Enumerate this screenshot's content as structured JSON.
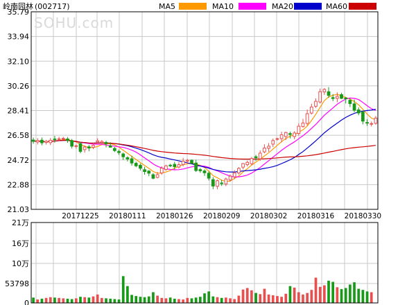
{
  "stock": {
    "title": "岭南园林",
    "code": "(002717)"
  },
  "watermark": "SOHU.com",
  "legend": [
    {
      "label": "MA5",
      "color": "#ff9900"
    },
    {
      "label": "MA10",
      "color": "#ff00ff"
    },
    {
      "label": "MA20",
      "color": "#0000cc"
    },
    {
      "label": "MA60",
      "color": "#cc0000"
    }
  ],
  "colors": {
    "up": "#e85050",
    "down": "#189a18",
    "grid": "#c8c8c8",
    "frame": "#000000"
  },
  "chart_data": {
    "type": "candlestick",
    "price_axis": {
      "ticks": [
        "35.79",
        "33.94",
        "32.10",
        "30.26",
        "28.41",
        "26.58",
        "24.72",
        "22.88",
        "21.03"
      ],
      "ylim": [
        21.03,
        35.79
      ]
    },
    "volume_axis": {
      "ticks": [
        "21万",
        "16万",
        "10万",
        "53798",
        "0"
      ],
      "ylim": [
        0,
        210000
      ]
    },
    "date_labels": [
      "20171225",
      "20180111",
      "20180126",
      "20180209",
      "20180302",
      "20180316",
      "20180330"
    ],
    "date_label_bars": [
      11,
      22,
      33,
      44,
      55,
      66,
      77
    ],
    "candles": [
      [
        26.21,
        26.11,
        26.39,
        25.93
      ],
      [
        26.06,
        26.17,
        26.35,
        25.88
      ],
      [
        26.2,
        26.0,
        26.4,
        25.81
      ],
      [
        26.03,
        26.11,
        26.22,
        25.87
      ],
      [
        26.01,
        26.19,
        26.36,
        25.83
      ],
      [
        26.29,
        26.25,
        26.52,
        26.01
      ],
      [
        26.26,
        26.3,
        26.45,
        26.16
      ],
      [
        26.3,
        26.33,
        26.45,
        26.21
      ],
      [
        26.29,
        26.17,
        26.43,
        26.0
      ],
      [
        26.17,
        25.75,
        26.29,
        25.58
      ],
      [
        25.77,
        25.78,
        25.87,
        25.57
      ],
      [
        25.94,
        25.36,
        26.06,
        25.22
      ],
      [
        25.49,
        25.69,
        25.8,
        25.27
      ],
      [
        25.7,
        25.61,
        25.83,
        25.37
      ],
      [
        25.67,
        25.81,
        26.02,
        25.53
      ],
      [
        26.07,
        26.15,
        26.34,
        25.97
      ],
      [
        26.02,
        26.1,
        26.21,
        25.82
      ],
      [
        26.03,
        25.93,
        26.15,
        25.66
      ],
      [
        25.77,
        25.67,
        26.04,
        25.64
      ],
      [
        25.58,
        25.42,
        25.7,
        25.31
      ],
      [
        25.36,
        25.27,
        25.49,
        25.1
      ],
      [
        25.17,
        24.96,
        25.27,
        24.72
      ],
      [
        24.89,
        24.79,
        25.0,
        24.61
      ],
      [
        24.81,
        24.49,
        25.04,
        24.3
      ],
      [
        24.47,
        24.28,
        24.59,
        24.18
      ],
      [
        24.32,
        24.1,
        24.46,
        23.93
      ],
      [
        23.99,
        23.85,
        24.21,
        23.62
      ],
      [
        23.89,
        23.73,
        23.96,
        23.51
      ],
      [
        23.62,
        23.35,
        23.74,
        23.28
      ],
      [
        23.42,
        23.62,
        23.83,
        23.34
      ],
      [
        23.75,
        24.11,
        24.24,
        23.61
      ],
      [
        24.01,
        24.28,
        24.36,
        23.91
      ],
      [
        24.33,
        24.29,
        24.43,
        24.19
      ],
      [
        24.39,
        24.22,
        24.58,
        24.01
      ],
      [
        24.19,
        24.37,
        24.56,
        24.08
      ],
      [
        24.37,
        24.63,
        24.88,
        24.24
      ],
      [
        24.63,
        24.69,
        24.8,
        24.42
      ],
      [
        24.7,
        24.47,
        24.75,
        24.41
      ],
      [
        24.49,
        23.93,
        24.73,
        23.82
      ],
      [
        24.0,
        23.91,
        24.12,
        23.76
      ],
      [
        23.9,
        23.76,
        24.02,
        23.53
      ],
      [
        23.73,
        23.36,
        23.87,
        23.19
      ],
      [
        23.25,
        22.77,
        23.44,
        22.54
      ],
      [
        22.75,
        23.17,
        23.25,
        22.53
      ],
      [
        23.0,
        22.96,
        23.24,
        22.78
      ],
      [
        22.93,
        23.3,
        23.4,
        22.76
      ],
      [
        23.22,
        23.51,
        23.64,
        23.1
      ],
      [
        23.46,
        23.75,
        23.96,
        23.28
      ],
      [
        23.75,
        24.09,
        24.19,
        23.63
      ],
      [
        24.18,
        24.45,
        24.49,
        24.01
      ],
      [
        24.37,
        24.54,
        24.67,
        24.24
      ],
      [
        24.44,
        24.83,
        24.94,
        24.31
      ],
      [
        24.96,
        24.88,
        25.1,
        24.66
      ],
      [
        24.81,
        25.23,
        25.43,
        24.65
      ],
      [
        25.32,
        25.61,
        25.89,
        25.22
      ],
      [
        25.59,
        25.75,
        25.98,
        25.32
      ],
      [
        25.9,
        26.17,
        26.32,
        25.68
      ],
      [
        26.27,
        26.31,
        26.38,
        26.17
      ],
      [
        26.31,
        26.6,
        26.83,
        26.03
      ],
      [
        26.47,
        26.77,
        26.83,
        26.21
      ],
      [
        26.69,
        26.63,
        26.83,
        26.33
      ],
      [
        26.47,
        26.73,
        26.87,
        26.27
      ],
      [
        26.7,
        27.24,
        27.45,
        26.54
      ],
      [
        27.21,
        27.48,
        27.79,
        27.14
      ],
      [
        27.45,
        28.18,
        28.49,
        27.29
      ],
      [
        28.22,
        28.68,
        28.92,
        28.12
      ],
      [
        28.73,
        29.1,
        29.32,
        28.61
      ],
      [
        29.05,
        29.82,
        30.06,
        28.93
      ],
      [
        29.8,
        29.99,
        30.09,
        29.58
      ],
      [
        29.82,
        29.54,
        30.16,
        29.36
      ],
      [
        29.38,
        29.31,
        29.64,
        29.11
      ],
      [
        29.32,
        29.47,
        29.77,
        29.03
      ],
      [
        29.6,
        29.32,
        29.74,
        29.27
      ],
      [
        29.35,
        29.29,
        29.43,
        28.94
      ],
      [
        29.18,
        28.93,
        29.33,
        28.67
      ],
      [
        28.91,
        28.44,
        29.23,
        28.29
      ],
      [
        28.46,
        28.23,
        28.65,
        28.06
      ],
      [
        28.3,
        27.62,
        28.4,
        27.38
      ],
      [
        27.52,
        27.5,
        27.77,
        27.27
      ],
      [
        27.4,
        27.44,
        27.59,
        27.22
      ],
      [
        27.46,
        27.85,
        28.0,
        27.35
      ]
    ],
    "volumes": [
      14000,
      9000,
      11000,
      13000,
      15000,
      14000,
      13000,
      12000,
      11000,
      10000,
      12000,
      16000,
      15000,
      14000,
      17000,
      22000,
      13000,
      12000,
      11000,
      10000,
      9000,
      70000,
      44000,
      21000,
      18000,
      16000,
      15000,
      17000,
      28000,
      19000,
      13000,
      12000,
      14000,
      11000,
      10000,
      9000,
      13000,
      12000,
      14000,
      16000,
      25000,
      30000,
      17000,
      15000,
      13000,
      14000,
      12000,
      10000,
      19000,
      35000,
      39000,
      33000,
      26000,
      23000,
      37000,
      22000,
      20000,
      18000,
      16000,
      24000,
      44000,
      40000,
      28000,
      22000,
      26000,
      34000,
      66000,
      42000,
      46000,
      58000,
      55000,
      41000,
      36000,
      39000,
      48000,
      54000,
      37000,
      34000,
      30000,
      28000
    ]
  }
}
